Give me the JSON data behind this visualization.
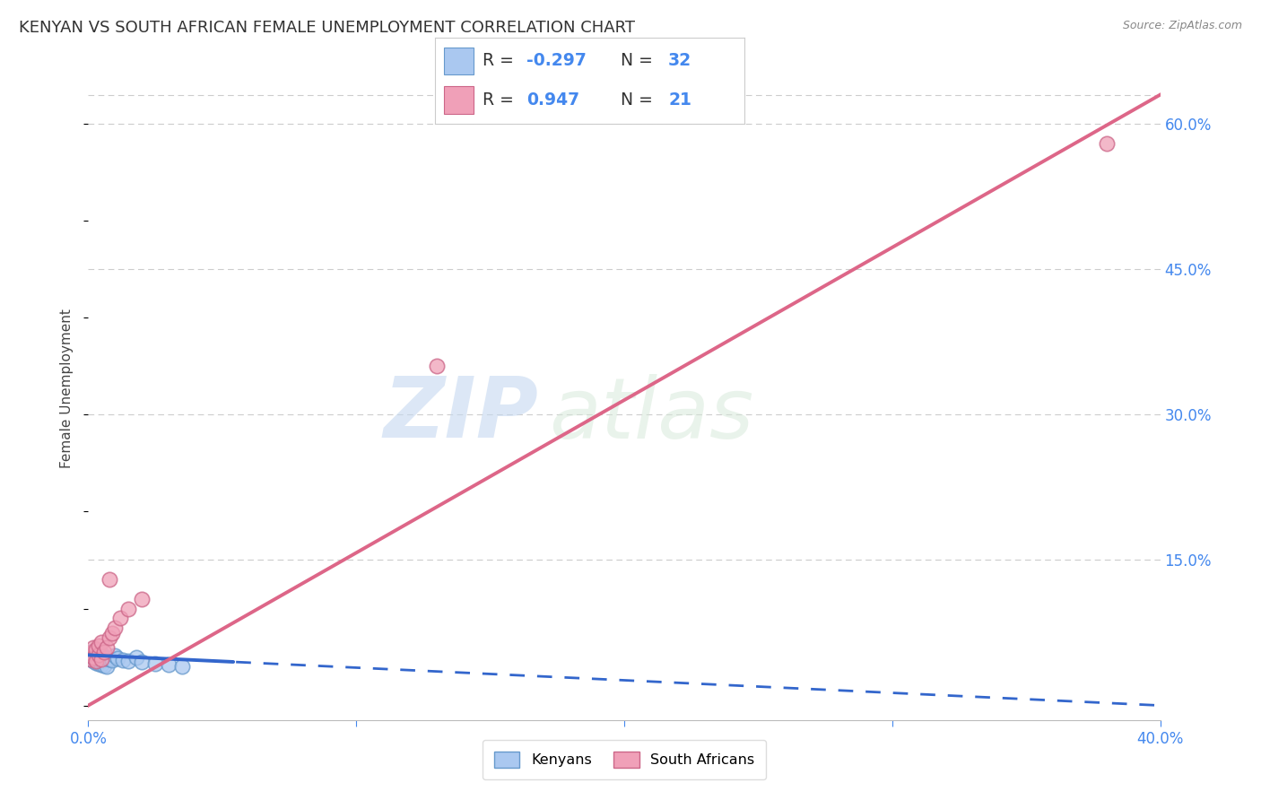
{
  "title": "KENYAN VS SOUTH AFRICAN FEMALE UNEMPLOYMENT CORRELATION CHART",
  "source": "Source: ZipAtlas.com",
  "ylabel": "Female Unemployment",
  "watermark_zip": "ZIP",
  "watermark_atlas": "atlas",
  "xlim": [
    0.0,
    0.4
  ],
  "ylim": [
    -0.015,
    0.67
  ],
  "yticks_right": [
    0.15,
    0.3,
    0.45,
    0.6
  ],
  "ytick_labels_right": [
    "15.0%",
    "30.0%",
    "45.0%",
    "60.0%"
  ],
  "grid_color": "#cccccc",
  "background_color": "#ffffff",
  "kenyan_color": "#aac8f0",
  "kenyan_edge_color": "#6699cc",
  "sa_color": "#f0a0b8",
  "sa_edge_color": "#cc6688",
  "blue_line_color": "#3366cc",
  "pink_line_color": "#dd6688",
  "R_kenyan": "-0.297",
  "N_kenyan": "32",
  "R_sa": "0.947",
  "N_sa": "21",
  "legend_labels": [
    "Kenyans",
    "South Africans"
  ],
  "title_fontsize": 13,
  "axis_label_fontsize": 11,
  "tick_fontsize": 12,
  "blue_line_solid_end": 0.055,
  "blue_line_slope": -0.13,
  "blue_line_intercept": 0.052,
  "pink_line_slope": 1.575,
  "pink_line_intercept": 0.0,
  "kenyan_x": [
    0.001,
    0.001,
    0.001,
    0.002,
    0.002,
    0.002,
    0.003,
    0.003,
    0.003,
    0.003,
    0.004,
    0.004,
    0.004,
    0.004,
    0.005,
    0.005,
    0.005,
    0.006,
    0.006,
    0.007,
    0.007,
    0.008,
    0.009,
    0.01,
    0.011,
    0.013,
    0.015,
    0.018,
    0.02,
    0.025,
    0.03,
    0.035
  ],
  "kenyan_y": [
    0.048,
    0.051,
    0.055,
    0.046,
    0.05,
    0.054,
    0.044,
    0.048,
    0.052,
    0.056,
    0.043,
    0.047,
    0.051,
    0.055,
    0.042,
    0.046,
    0.053,
    0.041,
    0.05,
    0.04,
    0.049,
    0.048,
    0.047,
    0.051,
    0.049,
    0.047,
    0.046,
    0.05,
    0.045,
    0.043,
    0.042,
    0.04
  ],
  "sa_x": [
    0.001,
    0.001,
    0.002,
    0.002,
    0.003,
    0.003,
    0.004,
    0.004,
    0.005,
    0.005,
    0.006,
    0.007,
    0.008,
    0.008,
    0.009,
    0.01,
    0.012,
    0.015,
    0.02,
    0.13,
    0.38
  ],
  "sa_y": [
    0.048,
    0.054,
    0.05,
    0.06,
    0.046,
    0.058,
    0.052,
    0.062,
    0.048,
    0.065,
    0.055,
    0.06,
    0.07,
    0.13,
    0.075,
    0.08,
    0.09,
    0.1,
    0.11,
    0.35,
    0.58
  ]
}
